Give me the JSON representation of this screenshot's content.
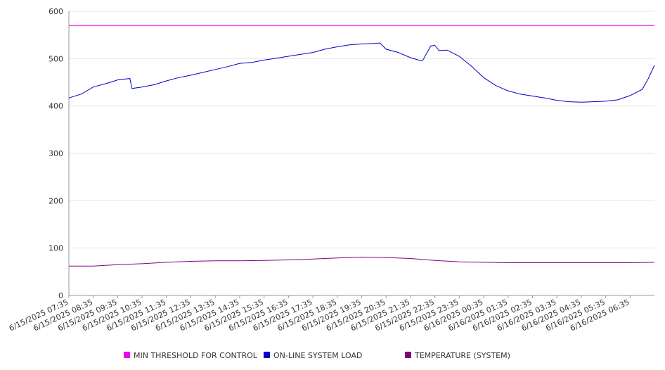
{
  "chart_data": {
    "type": "line",
    "title": "",
    "xlabel": "",
    "ylabel": "",
    "ylim": [
      0,
      600
    ],
    "yticks": [
      0,
      100,
      200,
      300,
      400,
      500,
      600
    ],
    "grid": true,
    "legend_position": "bottom",
    "x_tick_labels": [
      "6/15/2025 07:35",
      "6/15/2025 08:35",
      "6/15/2025 09:35",
      "6/15/2025 10:35",
      "6/15/2025 11:35",
      "6/15/2025 12:35",
      "6/15/2025 13:35",
      "6/15/2025 14:35",
      "6/15/2025 15:35",
      "6/15/2025 16:35",
      "6/15/2025 17:35",
      "6/15/2025 18:35",
      "6/15/2025 19:35",
      "6/15/2025 20:35",
      "6/15/2025 21:35",
      "6/15/2025 22:35",
      "6/15/2025 23:35",
      "6/16/2025 00:35",
      "6/16/2025 01:35",
      "6/16/2025 02:35",
      "6/16/2025 03:35",
      "6/16/2025 04:35",
      "6/16/2025 05:35",
      "6/16/2025 06:35"
    ],
    "x_end": "6/16/2025 07:35",
    "series": [
      {
        "name": "MIN THRESHOLD FOR CONTROL",
        "color": "#ee00ee",
        "points": [
          [
            "6/15/2025 07:35",
            570
          ],
          [
            "6/16/2025 07:35",
            570
          ]
        ]
      },
      {
        "name": "ON-LINE SYSTEM LOAD",
        "color": "#0000cc",
        "points": [
          [
            "6/15/2025 07:35",
            417
          ],
          [
            "6/15/2025 08:05",
            425
          ],
          [
            "6/15/2025 08:35",
            440
          ],
          [
            "6/15/2025 09:05",
            447
          ],
          [
            "6/15/2025 09:35",
            455
          ],
          [
            "6/15/2025 10:05",
            458
          ],
          [
            "6/15/2025 10:10",
            437
          ],
          [
            "6/15/2025 10:35",
            440
          ],
          [
            "6/15/2025 11:05",
            445
          ],
          [
            "6/15/2025 11:35",
            453
          ],
          [
            "6/15/2025 12:05",
            460
          ],
          [
            "6/15/2025 12:35",
            465
          ],
          [
            "6/15/2025 13:05",
            471
          ],
          [
            "6/15/2025 13:35",
            477
          ],
          [
            "6/15/2025 14:05",
            483
          ],
          [
            "6/15/2025 14:35",
            490
          ],
          [
            "6/15/2025 15:05",
            492
          ],
          [
            "6/15/2025 15:35",
            497
          ],
          [
            "6/15/2025 16:05",
            501
          ],
          [
            "6/15/2025 16:35",
            505
          ],
          [
            "6/15/2025 17:05",
            509
          ],
          [
            "6/15/2025 17:35",
            513
          ],
          [
            "6/15/2025 18:05",
            520
          ],
          [
            "6/15/2025 18:35",
            525
          ],
          [
            "6/15/2025 19:05",
            529
          ],
          [
            "6/15/2025 19:35",
            531
          ],
          [
            "6/15/2025 20:05",
            532
          ],
          [
            "6/15/2025 20:20",
            533
          ],
          [
            "6/15/2025 20:35",
            520
          ],
          [
            "6/15/2025 21:05",
            513
          ],
          [
            "6/15/2025 21:35",
            502
          ],
          [
            "6/15/2025 21:55",
            497
          ],
          [
            "6/15/2025 22:05",
            496
          ],
          [
            "6/15/2025 22:25",
            527
          ],
          [
            "6/15/2025 22:35",
            528
          ],
          [
            "6/15/2025 22:45",
            517
          ],
          [
            "6/15/2025 23:05",
            518
          ],
          [
            "6/15/2025 23:35",
            505
          ],
          [
            "6/16/2025 00:05",
            484
          ],
          [
            "6/16/2025 00:35",
            460
          ],
          [
            "6/16/2025 01:05",
            443
          ],
          [
            "6/16/2025 01:35",
            432
          ],
          [
            "6/16/2025 02:05",
            425
          ],
          [
            "6/16/2025 02:35",
            421
          ],
          [
            "6/16/2025 03:05",
            417
          ],
          [
            "6/16/2025 03:35",
            412
          ],
          [
            "6/16/2025 04:05",
            409
          ],
          [
            "6/16/2025 04:35",
            408
          ],
          [
            "6/16/2025 05:05",
            409
          ],
          [
            "6/16/2025 05:35",
            410
          ],
          [
            "6/16/2025 06:05",
            413
          ],
          [
            "6/16/2025 06:35",
            422
          ],
          [
            "6/16/2025 07:05",
            435
          ],
          [
            "6/16/2025 07:20",
            458
          ],
          [
            "6/16/2025 07:35",
            486
          ]
        ]
      },
      {
        "name": "TEMPERATURE (SYSTEM)",
        "color": "#800080",
        "points": [
          [
            "6/15/2025 07:35",
            62
          ],
          [
            "6/15/2025 08:35",
            62
          ],
          [
            "6/15/2025 09:35",
            65
          ],
          [
            "6/15/2025 10:35",
            67
          ],
          [
            "6/15/2025 11:35",
            70
          ],
          [
            "6/15/2025 12:35",
            72
          ],
          [
            "6/15/2025 13:35",
            73
          ],
          [
            "6/15/2025 14:35",
            73
          ],
          [
            "6/15/2025 15:35",
            74
          ],
          [
            "6/15/2025 16:35",
            75
          ],
          [
            "6/15/2025 17:35",
            77
          ],
          [
            "6/15/2025 18:35",
            79
          ],
          [
            "6/15/2025 19:35",
            81
          ],
          [
            "6/15/2025 20:35",
            80
          ],
          [
            "6/15/2025 21:35",
            78
          ],
          [
            "6/15/2025 22:35",
            74
          ],
          [
            "6/15/2025 23:35",
            71
          ],
          [
            "6/16/2025 00:35",
            70
          ],
          [
            "6/16/2025 01:35",
            69
          ],
          [
            "6/16/2025 02:35",
            69
          ],
          [
            "6/16/2025 03:35",
            69
          ],
          [
            "6/16/2025 04:35",
            69
          ],
          [
            "6/16/2025 05:35",
            69
          ],
          [
            "6/16/2025 06:35",
            69
          ],
          [
            "6/16/2025 07:35",
            70
          ]
        ]
      }
    ]
  }
}
